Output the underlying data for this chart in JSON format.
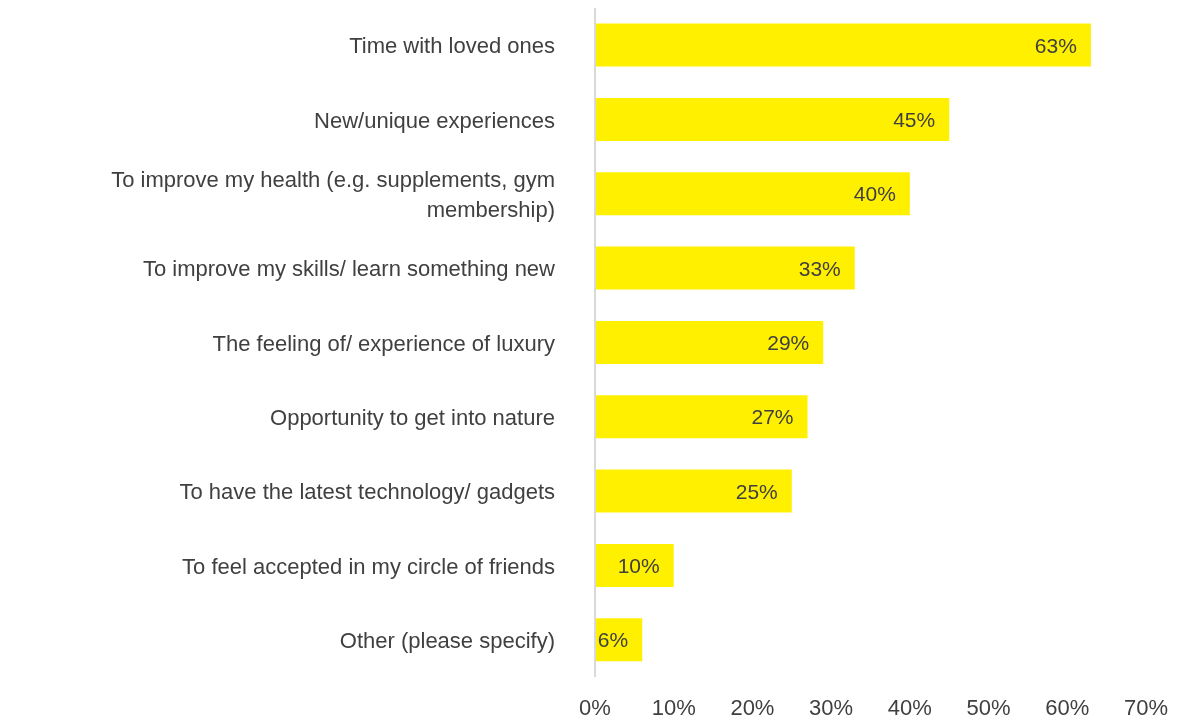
{
  "chart_data": {
    "type": "bar",
    "orientation": "horizontal",
    "categories": [
      "Time with loved ones",
      "New/unique experiences",
      "To improve my health (e.g. supplements, gym membership)",
      "To improve my skills/ learn something new",
      "The feeling of/ experience of luxury",
      "Opportunity to get into nature",
      "To have the latest technology/ gadgets",
      "To feel accepted in my circle of friends",
      "Other (please specify)"
    ],
    "values": [
      63,
      45,
      40,
      33,
      29,
      27,
      25,
      10,
      6
    ],
    "value_labels": [
      "63%",
      "45%",
      "40%",
      "33%",
      "29%",
      "27%",
      "25%",
      "10%",
      "6%"
    ],
    "color": "#fff000",
    "xlim": [
      0,
      70
    ],
    "xticks": [
      {
        "value": 0,
        "label": "0%"
      },
      {
        "value": 10,
        "label": "10%"
      },
      {
        "value": 20,
        "label": "20%"
      },
      {
        "value": 30,
        "label": "30%"
      },
      {
        "value": 40,
        "label": "40%"
      },
      {
        "value": 50,
        "label": "50%"
      },
      {
        "value": 60,
        "label": "60%"
      },
      {
        "value": 70,
        "label": "70%"
      }
    ],
    "grid": false
  }
}
